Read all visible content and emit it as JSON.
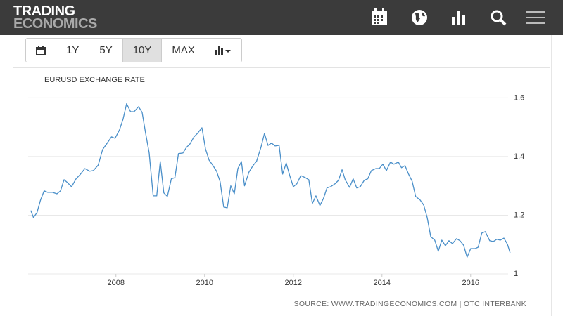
{
  "header": {
    "logo_line1": "TRADING",
    "logo_line2": "ECONOMICS"
  },
  "toolbar": {
    "buttons": [
      "1Y",
      "5Y",
      "10Y",
      "MAX"
    ],
    "active": 2
  },
  "chart_data": {
    "type": "line",
    "title": "EURUSD EXCHANGE RATE",
    "source": "SOURCE: WWW.TRADINGECONOMICS.COM | OTC INTERBANK",
    "color": "#4a8fc9",
    "x": [
      2006.08,
      2006.14,
      2006.22,
      2006.3,
      2006.38,
      2006.46,
      2006.57,
      2006.67,
      2006.75,
      2006.83,
      2006.9,
      2007.0,
      2007.1,
      2007.19,
      2007.3,
      2007.41,
      2007.49,
      2007.6,
      2007.7,
      2007.79,
      2007.9,
      2007.98,
      2008.08,
      2008.16,
      2008.24,
      2008.33,
      2008.41,
      2008.51,
      2008.59,
      2008.67,
      2008.75,
      2008.84,
      2008.92,
      2009.0,
      2009.08,
      2009.16,
      2009.25,
      2009.33,
      2009.41,
      2009.51,
      2009.59,
      2009.67,
      2009.76,
      2009.84,
      2009.94,
      2010.02,
      2010.1,
      2010.19,
      2010.27,
      2010.35,
      2010.43,
      2010.51,
      2010.59,
      2010.67,
      2010.75,
      2010.83,
      2010.9,
      2011.0,
      2011.1,
      2011.17,
      2011.27,
      2011.35,
      2011.43,
      2011.51,
      2011.59,
      2011.68,
      2011.76,
      2011.84,
      2011.92,
      2012.0,
      2012.08,
      2012.17,
      2012.27,
      2012.35,
      2012.43,
      2012.51,
      2012.6,
      2012.68,
      2012.76,
      2012.84,
      2012.94,
      2013.02,
      2013.1,
      2013.17,
      2013.27,
      2013.35,
      2013.43,
      2013.51,
      2013.6,
      2013.68,
      2013.76,
      2013.86,
      2013.94,
      2014.02,
      2014.1,
      2014.19,
      2014.27,
      2014.37,
      2014.44,
      2014.52,
      2014.6,
      2014.68,
      2014.76,
      2014.86,
      2014.94,
      2015.02,
      2015.1,
      2015.19,
      2015.27,
      2015.35,
      2015.43,
      2015.51,
      2015.59,
      2015.68,
      2015.76,
      2015.84,
      2015.92,
      2016.0,
      2016.1,
      2016.17,
      2016.25,
      2016.33,
      2016.43,
      2016.51,
      2016.59,
      2016.67,
      2016.75,
      2016.83,
      2016.89
    ],
    "values": [
      1.216,
      1.192,
      1.209,
      1.252,
      1.283,
      1.278,
      1.278,
      1.273,
      1.283,
      1.321,
      1.312,
      1.297,
      1.324,
      1.338,
      1.359,
      1.35,
      1.352,
      1.371,
      1.424,
      1.443,
      1.467,
      1.462,
      1.491,
      1.527,
      1.58,
      1.553,
      1.553,
      1.57,
      1.551,
      1.479,
      1.412,
      1.266,
      1.266,
      1.383,
      1.276,
      1.264,
      1.324,
      1.328,
      1.41,
      1.412,
      1.431,
      1.443,
      1.467,
      1.479,
      1.498,
      1.426,
      1.388,
      1.369,
      1.35,
      1.314,
      1.228,
      1.225,
      1.3,
      1.273,
      1.359,
      1.383,
      1.3,
      1.347,
      1.371,
      1.383,
      1.431,
      1.479,
      1.438,
      1.446,
      1.436,
      1.438,
      1.34,
      1.378,
      1.335,
      1.297,
      1.307,
      1.335,
      1.328,
      1.321,
      1.24,
      1.266,
      1.233,
      1.257,
      1.293,
      1.297,
      1.307,
      1.319,
      1.355,
      1.321,
      1.295,
      1.324,
      1.293,
      1.297,
      1.319,
      1.324,
      1.352,
      1.359,
      1.359,
      1.374,
      1.352,
      1.381,
      1.374,
      1.381,
      1.362,
      1.369,
      1.34,
      1.316,
      1.264,
      1.252,
      1.235,
      1.192,
      1.127,
      1.115,
      1.077,
      1.115,
      1.096,
      1.113,
      1.103,
      1.12,
      1.113,
      1.098,
      1.057,
      1.086,
      1.086,
      1.091,
      1.139,
      1.144,
      1.113,
      1.11,
      1.118,
      1.115,
      1.122,
      1.101,
      1.072
    ],
    "xlim": [
      2006.02,
      2016.94
    ],
    "ylim": [
      1,
      1.62
    ],
    "xticks": [
      2008,
      2010,
      2012,
      2014,
      2016
    ],
    "yticks": [
      1,
      1.2,
      1.4,
      1.6
    ],
    "grid": true
  }
}
